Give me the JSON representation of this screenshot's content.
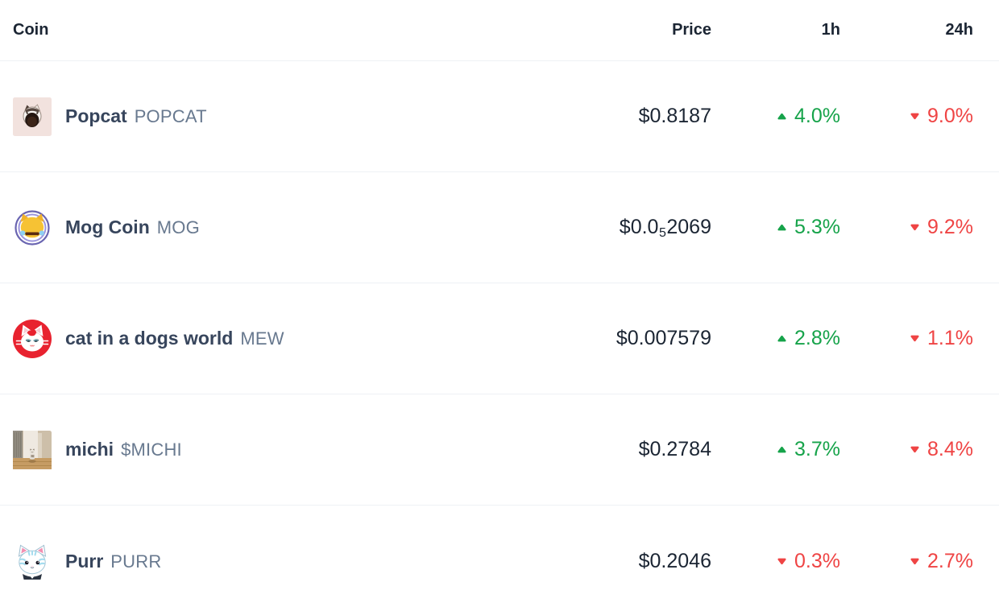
{
  "table": {
    "columns": {
      "coin": "Coin",
      "price": "Price",
      "h1": "1h",
      "h24": "24h"
    },
    "coins": [
      {
        "name": "Popcat",
        "symbol": "POPCAT",
        "icon": "popcat-coin-icon",
        "price": {
          "prefix": "$0.8187"
        },
        "change_1h": {
          "value": "4.0%",
          "direction": "up"
        },
        "change_24h": {
          "value": "9.0%",
          "direction": "down"
        }
      },
      {
        "name": "Mog Coin",
        "symbol": "MOG",
        "icon": "mog-coin-icon",
        "price": {
          "prefix": "$0.0",
          "sub": "5",
          "tail": "2069"
        },
        "change_1h": {
          "value": "5.3%",
          "direction": "up"
        },
        "change_24h": {
          "value": "9.2%",
          "direction": "down"
        }
      },
      {
        "name": "cat in a dogs world",
        "symbol": "MEW",
        "icon": "mew-coin-icon",
        "price": {
          "prefix": "$0.007579"
        },
        "change_1h": {
          "value": "2.8%",
          "direction": "up"
        },
        "change_24h": {
          "value": "1.1%",
          "direction": "down"
        }
      },
      {
        "name": "michi",
        "symbol": "$MICHI",
        "icon": "michi-coin-icon",
        "price": {
          "prefix": "$0.2784"
        },
        "change_1h": {
          "value": "3.7%",
          "direction": "up"
        },
        "change_24h": {
          "value": "8.4%",
          "direction": "down"
        }
      },
      {
        "name": "Purr",
        "symbol": "PURR",
        "icon": "purr-coin-icon",
        "price": {
          "prefix": "$0.2046"
        },
        "change_1h": {
          "value": "0.3%",
          "direction": "down"
        },
        "change_24h": {
          "value": "2.7%",
          "direction": "down"
        }
      }
    ]
  },
  "icons": {
    "up": "caret-up-icon",
    "down": "caret-down-icon"
  },
  "colors": {
    "up": "#16a34a",
    "down": "#ef4444",
    "header_text": "#1b2533",
    "price_text": "#1b2533",
    "name_text": "#37455c",
    "symbol_text": "#68798f",
    "divider": "#eef1f5"
  }
}
